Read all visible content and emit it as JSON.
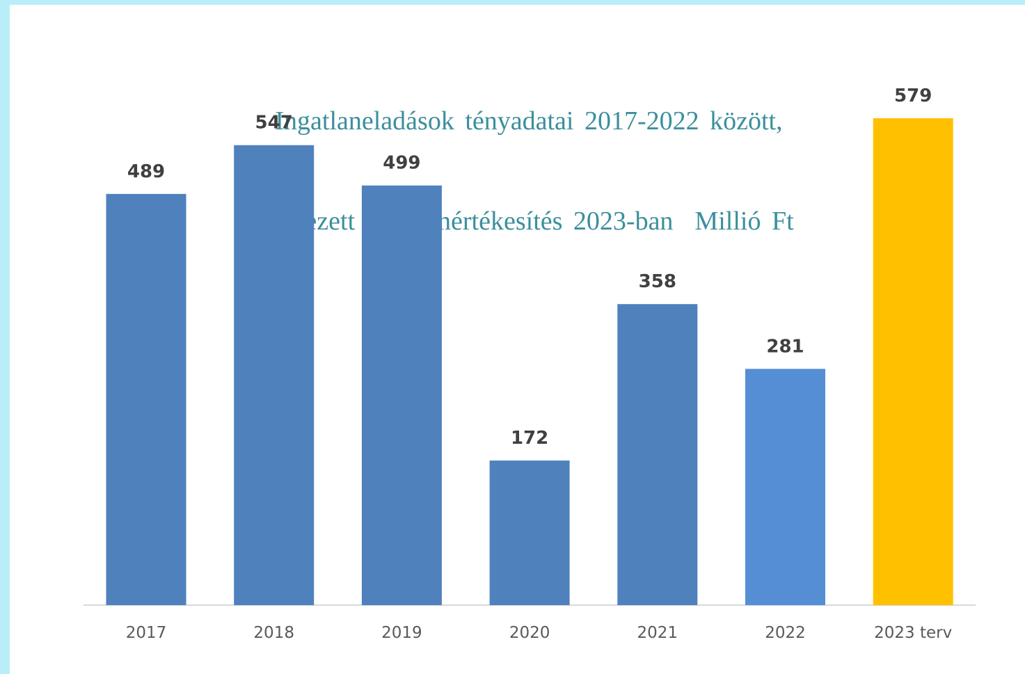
{
  "chart_data": {
    "type": "bar",
    "title_line1": "Ingatlaneladások tényadatai 2017-2022 között,",
    "title_line2": "tervezett ingatlanértékesítés 2023-ban  Millió Ft",
    "categories": [
      "2017",
      "2018",
      "2019",
      "2020",
      "2021",
      "2022",
      "2023 terv"
    ],
    "values": [
      489,
      547,
      499,
      172,
      358,
      281,
      579
    ],
    "colors": [
      "#4f81bd",
      "#4f81bd",
      "#4f81bd",
      "#4f81bd",
      "#4f81bd",
      "#558ed5",
      "#ffc000"
    ],
    "ylim": [
      0,
      579
    ],
    "grid": false,
    "legend": "none"
  },
  "colors": {
    "page_background": "#b9eef8",
    "title": "#3b8f9c",
    "axis_line": "#d9d9d9",
    "data_label": "#404040",
    "tick_label": "#595959"
  }
}
